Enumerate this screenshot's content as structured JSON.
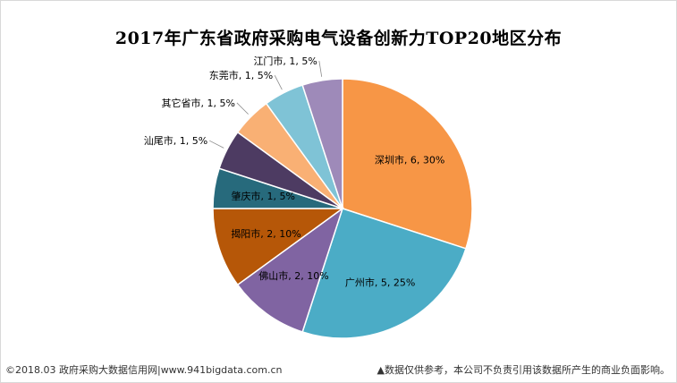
{
  "chart_data": {
    "type": "pie",
    "title": "2017年广东省政府采购电气设备创新力TOP20地区分布",
    "slices": [
      {
        "label": "深圳市, 6, 30%",
        "name": "深圳市",
        "value": 6,
        "percent": 30,
        "color": "#F79646"
      },
      {
        "label": "广州市, 5, 25%",
        "name": "广州市",
        "value": 5,
        "percent": 25,
        "color": "#4BACC6"
      },
      {
        "label": "佛山市, 2, 10%",
        "name": "佛山市",
        "value": 2,
        "percent": 10,
        "color": "#8064A2"
      },
      {
        "label": "揭阳市, 2, 10%",
        "name": "揭阳市",
        "value": 2,
        "percent": 10,
        "color": "#B65708"
      },
      {
        "label": "肇庆市, 1, 5%",
        "name": "肇庆市",
        "value": 1,
        "percent": 5,
        "color": "#276A7C"
      },
      {
        "label": "汕尾市, 1, 5%",
        "name": "汕尾市",
        "value": 1,
        "percent": 5,
        "color": "#4D3B62"
      },
      {
        "label": "其它省市, 1, 5%",
        "name": "其它省市",
        "value": 1,
        "percent": 5,
        "color": "#F9B074"
      },
      {
        "label": "东莞市, 1, 5%",
        "name": "东莞市",
        "value": 1,
        "percent": 5,
        "color": "#7FC3D6"
      },
      {
        "label": "江门市, 1, 5%",
        "name": "江门市",
        "value": 1,
        "percent": 5,
        "color": "#9E8AB9"
      }
    ]
  },
  "footer": {
    "source": "©2018.03 政府采购大数据信用网|www.941bigdata.com.cn",
    "disclaimer": "▲数据仅供参考，本公司不负责引用该数据所产生的商业负面影响。"
  }
}
